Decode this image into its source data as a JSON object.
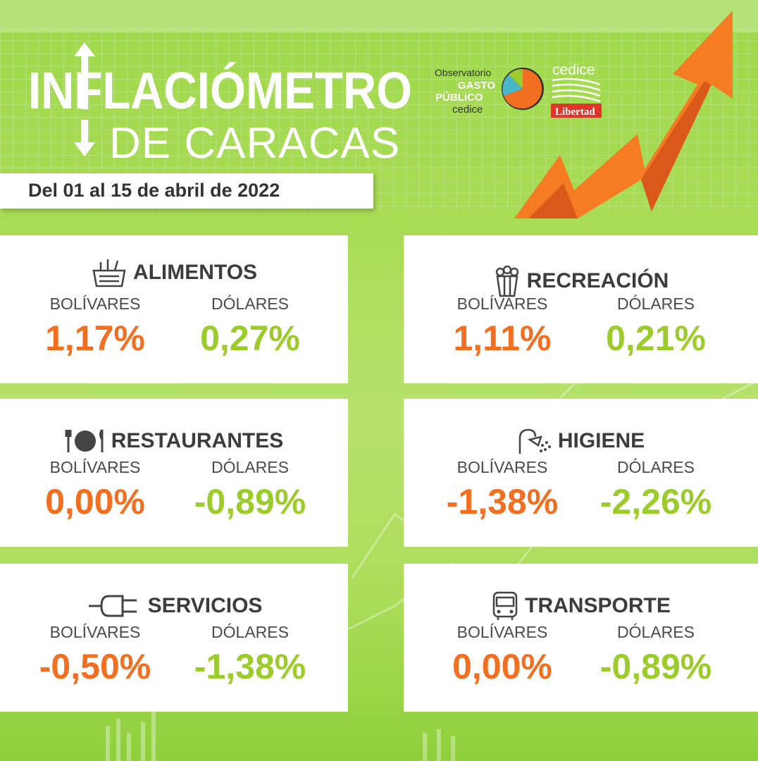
{
  "header": {
    "title_line1": "INFLACIÓMETRO",
    "title_line2": "DE CARACAS",
    "date_range": "Del 01 al 15 de abril de 2022"
  },
  "logos": {
    "observatorio": "Observatorio",
    "gasto": "GASTO",
    "publico": "PÚBLICO",
    "cedice_small": "cedice",
    "cedice": "cedice",
    "libertad": "Libertad"
  },
  "colors": {
    "orange": "#f26f21",
    "green": "#9ccc2c",
    "background": "#a8dc55"
  },
  "categories": [
    {
      "name": "ALIMENTOS",
      "icon": "food-basket-icon",
      "bolivares_label": "BOLÍVARES",
      "dolares_label": "DÓLARES",
      "bolivares": "1,17%",
      "dolares": "0,27%"
    },
    {
      "name": "RECREACIÓN",
      "icon": "popcorn-icon",
      "bolivares_label": "BOLÍVARES",
      "dolares_label": "DÓLARES",
      "bolivares": "1,11%",
      "dolares": "0,21%"
    },
    {
      "name": "RESTAURANTES",
      "icon": "plate-cutlery-icon",
      "bolivares_label": "BOLÍVARES",
      "dolares_label": "DÓLARES",
      "bolivares": "0,00%",
      "dolares": "-0,89%"
    },
    {
      "name": "HIGIENE",
      "icon": "shower-icon",
      "bolivares_label": "BOLÍVARES",
      "dolares_label": "DÓLARES",
      "bolivares": "-1,38%",
      "dolares": "-2,26%"
    },
    {
      "name": "SERVICIOS",
      "icon": "plug-icon",
      "bolivares_label": "BOLÍVARES",
      "dolares_label": "DÓLARES",
      "bolivares": "-0,50%",
      "dolares": "-1,38%"
    },
    {
      "name": "TRANSPORTE",
      "icon": "bus-icon",
      "bolivares_label": "BOLÍVARES",
      "dolares_label": "DÓLARES",
      "bolivares": "0,00%",
      "dolares": "-0,89%"
    }
  ]
}
